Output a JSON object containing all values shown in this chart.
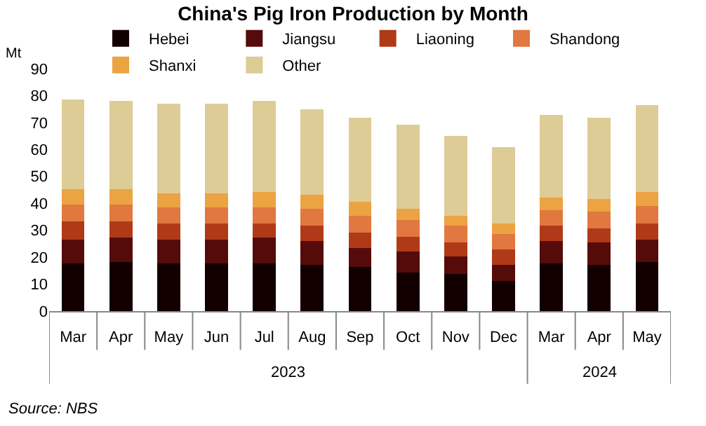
{
  "chart_data": {
    "type": "bar",
    "stacked": true,
    "title": "China's Pig Iron Production by Month",
    "ylabel": "Mt",
    "categories": [
      "Mar",
      "Apr",
      "May",
      "Jun",
      "Jul",
      "Aug",
      "Sep",
      "Oct",
      "Nov",
      "Dec",
      "Mar",
      "Apr",
      "May"
    ],
    "series": [
      {
        "name": "Hebei",
        "color": "#120000",
        "values": [
          17.8,
          18.3,
          17.8,
          17.8,
          17.8,
          17.3,
          16.3,
          14.2,
          13.7,
          11.1,
          17.8,
          17.3,
          18.3
        ]
      },
      {
        "name": "Jiangsu",
        "color": "#560b0b",
        "values": [
          8.8,
          8.9,
          8.8,
          8.8,
          9.4,
          8.8,
          7.2,
          7.8,
          6.7,
          6.2,
          8.3,
          8.3,
          8.3
        ]
      },
      {
        "name": "Liaoning",
        "color": "#b03a17",
        "values": [
          6.8,
          6.2,
          5.8,
          5.8,
          5.2,
          5.7,
          5.7,
          5.7,
          5.2,
          5.7,
          5.7,
          5.2,
          5.8
        ]
      },
      {
        "name": "Shandong",
        "color": "#e07840",
        "values": [
          6.2,
          6.2,
          6.2,
          6.2,
          6.2,
          6.3,
          6.3,
          6.2,
          6.2,
          5.7,
          5.7,
          6.2,
          6.7
        ]
      },
      {
        "name": "Shanxi",
        "color": "#eca342",
        "values": [
          5.7,
          5.7,
          5.2,
          5.2,
          5.7,
          5.2,
          5.2,
          4.2,
          3.7,
          3.7,
          4.7,
          4.7,
          5.2
        ]
      },
      {
        "name": "Other",
        "color": "#ddcc96",
        "values": [
          33.2,
          32.7,
          33.2,
          33.2,
          33.7,
          31.6,
          31.1,
          31.1,
          29.6,
          28.5,
          30.6,
          30.1,
          32.2
        ]
      }
    ],
    "ylim": [
      0,
      90
    ],
    "yticks": [
      0,
      10,
      20,
      30,
      40,
      50,
      60,
      70,
      80,
      90
    ],
    "legend": "top",
    "annotations": [
      "2023",
      "2024",
      "Source: NBS"
    ]
  }
}
